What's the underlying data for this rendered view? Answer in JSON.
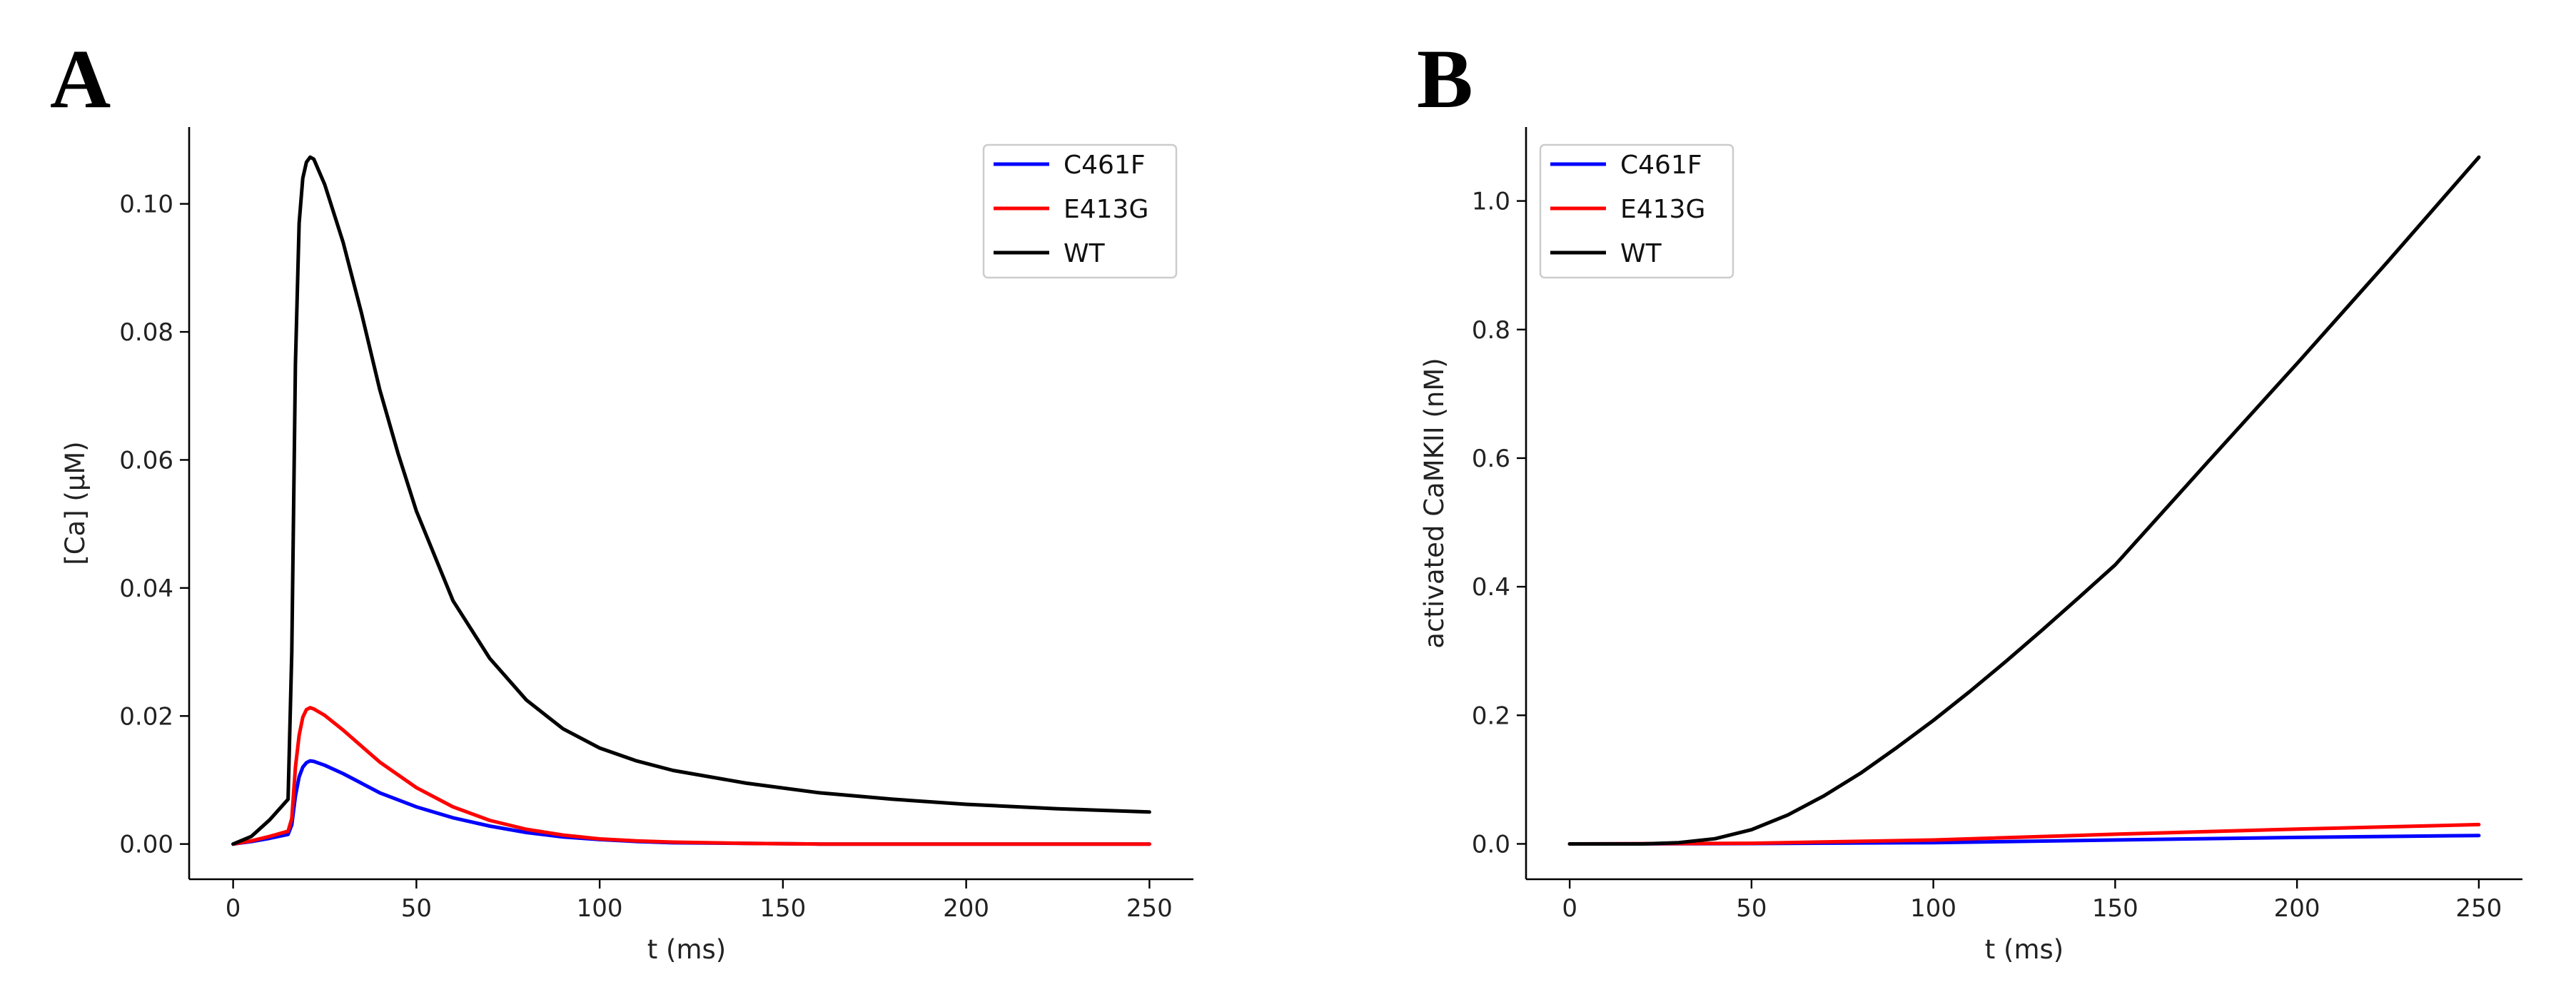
{
  "chart_data": [
    {
      "panel": "A",
      "type": "line",
      "title": "",
      "xlabel": "t (ms)",
      "ylabel": "[Ca] (μM)",
      "xlim": [
        -12,
        262
      ],
      "ylim": [
        -0.0055,
        0.112
      ],
      "xticks": [
        0,
        50,
        100,
        150,
        200,
        250
      ],
      "xtick_labels": [
        "0",
        "50",
        "100",
        "150",
        "200",
        "250"
      ],
      "yticks": [
        0.0,
        0.02,
        0.04,
        0.06,
        0.08,
        0.1
      ],
      "ytick_labels": [
        "0.00",
        "0.02",
        "0.04",
        "0.06",
        "0.08",
        "0.10"
      ],
      "grid": false,
      "legend_position": "top-right",
      "series": [
        {
          "name": "C461F",
          "color": "#0000ff",
          "x": [
            0,
            5,
            10,
            15,
            16,
            17,
            18,
            19,
            20,
            21,
            22,
            25,
            30,
            35,
            40,
            50,
            60,
            70,
            80,
            90,
            100,
            110,
            120,
            140,
            160,
            200,
            250
          ],
          "y": [
            0.0,
            0.0004,
            0.0009,
            0.0015,
            0.003,
            0.0075,
            0.0105,
            0.012,
            0.0127,
            0.013,
            0.0129,
            0.0123,
            0.011,
            0.0095,
            0.008,
            0.0058,
            0.0041,
            0.0028,
            0.0018,
            0.0011,
            0.0007,
            0.0004,
            0.0002,
            0.0001,
            0.0,
            0.0,
            0.0
          ]
        },
        {
          "name": "E413G",
          "color": "#ff0000",
          "x": [
            0,
            5,
            10,
            15,
            16,
            17,
            18,
            19,
            20,
            21,
            22,
            25,
            30,
            35,
            40,
            50,
            60,
            70,
            80,
            90,
            100,
            110,
            120,
            140,
            160,
            200,
            250
          ],
          "y": [
            0.0,
            0.0005,
            0.0012,
            0.002,
            0.004,
            0.012,
            0.017,
            0.0198,
            0.021,
            0.0213,
            0.0211,
            0.0201,
            0.0178,
            0.0153,
            0.0128,
            0.0088,
            0.0058,
            0.0037,
            0.0023,
            0.0014,
            0.0008,
            0.0005,
            0.0003,
            0.0001,
            0.0,
            0.0,
            0.0
          ]
        },
        {
          "name": "WT",
          "color": "#000000",
          "x": [
            0,
            5,
            10,
            15,
            16,
            17,
            18,
            19,
            20,
            21,
            22,
            25,
            30,
            35,
            40,
            45,
            50,
            60,
            70,
            80,
            90,
            100,
            110,
            120,
            140,
            160,
            180,
            200,
            225,
            250
          ],
          "y": [
            0.0,
            0.0012,
            0.0038,
            0.007,
            0.03,
            0.075,
            0.097,
            0.104,
            0.1065,
            0.1073,
            0.107,
            0.103,
            0.094,
            0.083,
            0.071,
            0.061,
            0.052,
            0.038,
            0.029,
            0.0225,
            0.018,
            0.015,
            0.013,
            0.0115,
            0.0095,
            0.008,
            0.007,
            0.0062,
            0.0055,
            0.005
          ]
        }
      ]
    },
    {
      "panel": "B",
      "type": "line",
      "title": "",
      "xlabel": "t (ms)",
      "ylabel": "activated CaMKII (nM)",
      "xlim": [
        -12,
        262
      ],
      "ylim": [
        -0.055,
        1.115
      ],
      "xticks": [
        0,
        50,
        100,
        150,
        200,
        250
      ],
      "xtick_labels": [
        "0",
        "50",
        "100",
        "150",
        "200",
        "250"
      ],
      "yticks": [
        0.0,
        0.2,
        0.4,
        0.6,
        0.8,
        1.0
      ],
      "ytick_labels": [
        "0.0",
        "0.2",
        "0.4",
        "0.6",
        "0.8",
        "1.0"
      ],
      "grid": false,
      "legend_position": "top-left",
      "series": [
        {
          "name": "C461F",
          "color": "#0000ff",
          "x": [
            0,
            50,
            100,
            150,
            200,
            250
          ],
          "y": [
            0.0,
            0.0005,
            0.002,
            0.006,
            0.01,
            0.013
          ]
        },
        {
          "name": "E413G",
          "color": "#ff0000",
          "x": [
            0,
            50,
            100,
            150,
            200,
            250
          ],
          "y": [
            0.0,
            0.001,
            0.006,
            0.015,
            0.023,
            0.03
          ]
        },
        {
          "name": "WT",
          "color": "#000000",
          "x": [
            0,
            20,
            30,
            40,
            50,
            60,
            70,
            80,
            90,
            100,
            110,
            120,
            130,
            140,
            150,
            175,
            200,
            225,
            250
          ],
          "y": [
            0.0,
            0.0,
            0.002,
            0.008,
            0.022,
            0.045,
            0.075,
            0.11,
            0.15,
            0.192,
            0.237,
            0.284,
            0.333,
            0.383,
            0.434,
            0.591,
            0.747,
            0.906,
            1.068
          ]
        }
      ]
    }
  ]
}
